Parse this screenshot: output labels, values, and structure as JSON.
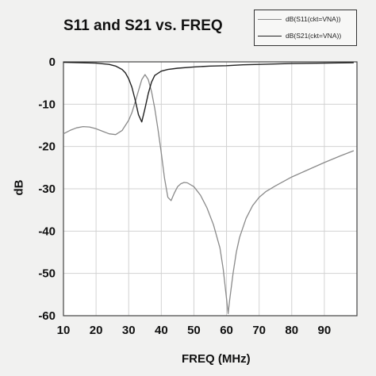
{
  "chart_data": {
    "type": "line",
    "title": "S11 and S21 vs. FREQ",
    "xlabel": "FREQ (MHz)",
    "ylabel": "dB",
    "xlim": [
      10,
      100
    ],
    "ylim": [
      -60,
      0
    ],
    "xticks": [
      10,
      20,
      30,
      40,
      50,
      60,
      70,
      80,
      90
    ],
    "yticks": [
      0,
      -10,
      -20,
      -30,
      -40,
      -50,
      -60
    ],
    "grid": true,
    "legend_position": "top-right",
    "series": [
      {
        "name": "dB(S11(ckt=VNA))",
        "color": "#8a8a8a",
        "points": [
          [
            10,
            -17.0
          ],
          [
            12,
            -16.2
          ],
          [
            14,
            -15.6
          ],
          [
            16,
            -15.3
          ],
          [
            18,
            -15.4
          ],
          [
            20,
            -15.8
          ],
          [
            22,
            -16.4
          ],
          [
            24,
            -17.0
          ],
          [
            26,
            -17.2
          ],
          [
            28,
            -16.2
          ],
          [
            30,
            -13.8
          ],
          [
            31,
            -12.0
          ],
          [
            32,
            -9.5
          ],
          [
            33,
            -6.8
          ],
          [
            34,
            -4.2
          ],
          [
            35,
            -3.0
          ],
          [
            36,
            -4.2
          ],
          [
            37,
            -7.0
          ],
          [
            38,
            -11.0
          ],
          [
            39,
            -16.0
          ],
          [
            40,
            -21.5
          ],
          [
            41,
            -27.5
          ],
          [
            42,
            -32.0
          ],
          [
            43,
            -32.8
          ],
          [
            44,
            -31.0
          ],
          [
            45,
            -29.5
          ],
          [
            46,
            -28.8
          ],
          [
            47,
            -28.5
          ],
          [
            48,
            -28.6
          ],
          [
            50,
            -29.5
          ],
          [
            52,
            -31.5
          ],
          [
            54,
            -34.5
          ],
          [
            56,
            -38.5
          ],
          [
            58,
            -44.0
          ],
          [
            59,
            -49.0
          ],
          [
            60,
            -56.0
          ],
          [
            60.5,
            -59.5
          ],
          [
            61,
            -56.0
          ],
          [
            62,
            -50.0
          ],
          [
            63,
            -45.0
          ],
          [
            64,
            -41.5
          ],
          [
            66,
            -37.0
          ],
          [
            68,
            -34.0
          ],
          [
            70,
            -32.0
          ],
          [
            72,
            -30.7
          ],
          [
            75,
            -29.3
          ],
          [
            80,
            -27.2
          ],
          [
            85,
            -25.5
          ],
          [
            90,
            -23.8
          ],
          [
            95,
            -22.2
          ],
          [
            99,
            -21.0
          ]
        ]
      },
      {
        "name": "dB(S21(ckt=VNA))",
        "color": "#222222",
        "points": [
          [
            10,
            -0.1
          ],
          [
            15,
            -0.2
          ],
          [
            20,
            -0.3
          ],
          [
            24,
            -0.6
          ],
          [
            26,
            -1.0
          ],
          [
            28,
            -1.8
          ],
          [
            29,
            -2.6
          ],
          [
            30,
            -4.0
          ],
          [
            31,
            -6.0
          ],
          [
            32,
            -9.0
          ],
          [
            33,
            -12.5
          ],
          [
            34,
            -14.2
          ],
          [
            35,
            -11.0
          ],
          [
            36,
            -7.5
          ],
          [
            37,
            -4.8
          ],
          [
            38,
            -3.2
          ],
          [
            40,
            -2.2
          ],
          [
            42,
            -1.8
          ],
          [
            45,
            -1.5
          ],
          [
            50,
            -1.2
          ],
          [
            55,
            -1.0
          ],
          [
            60,
            -0.9
          ],
          [
            65,
            -0.7
          ],
          [
            70,
            -0.6
          ],
          [
            80,
            -0.4
          ],
          [
            90,
            -0.3
          ],
          [
            99,
            -0.2
          ]
        ]
      }
    ]
  }
}
